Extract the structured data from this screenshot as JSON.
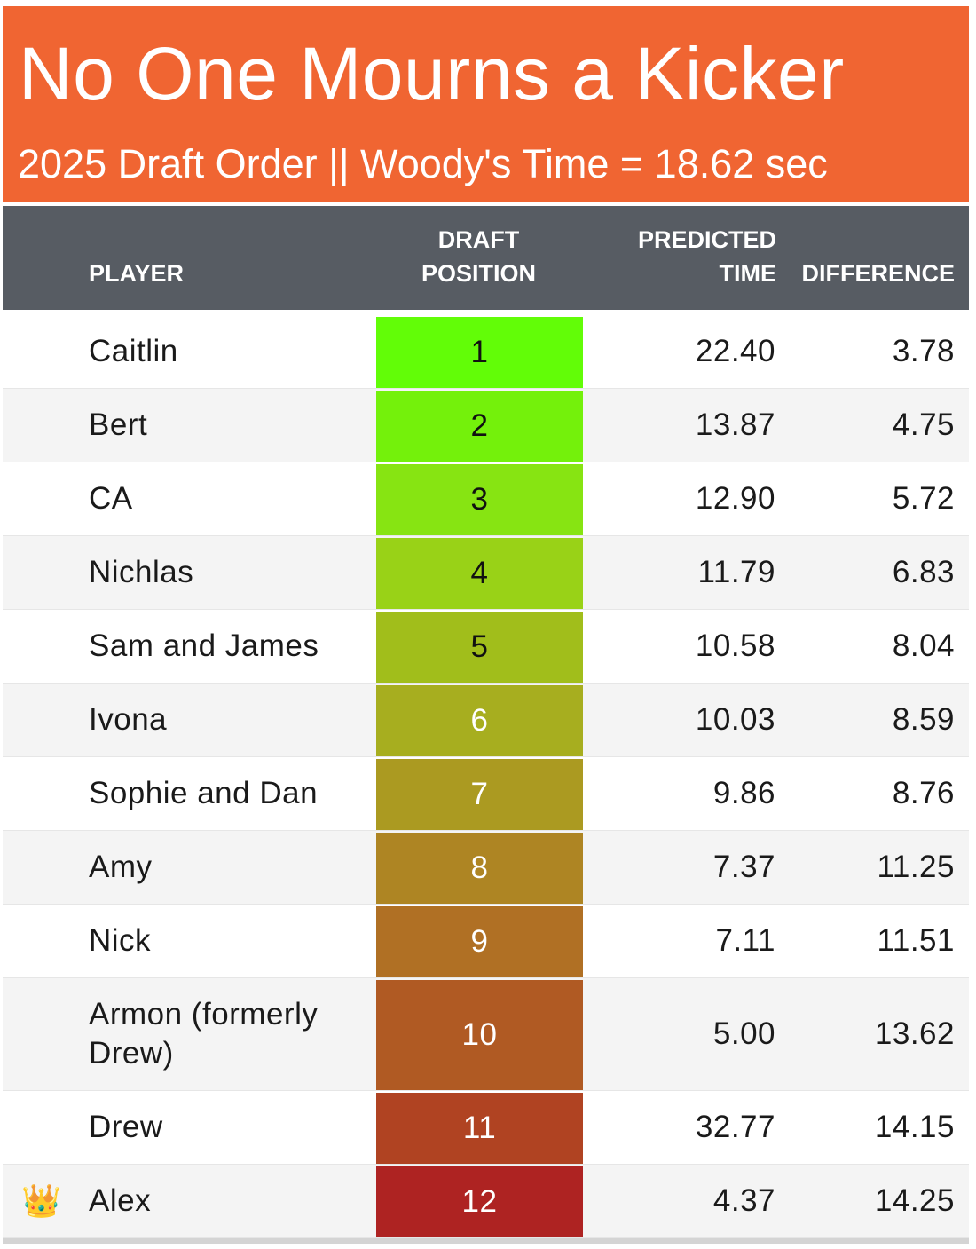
{
  "title": "No One Mourns a Kicker",
  "subtitle": "2025 Draft Order || Woody's Time = 18.62 sec",
  "colors": {
    "banner": "#f06532",
    "header": "#575c63"
  },
  "columns": {
    "player": "PLAYER",
    "draft_line1": "DRAFT",
    "draft_line2": "POSITION",
    "pred_line1": "PREDICTED",
    "pred_line2": "TIME",
    "difference": "DIFFERENCE"
  },
  "rows": [
    {
      "icon": "",
      "player": "Caitlin",
      "position": "1",
      "predicted": "22.40",
      "difference": "3.78",
      "color": "#62fd07",
      "text_color": "#111111"
    },
    {
      "icon": "",
      "player": "Bert",
      "position": "2",
      "predicted": "13.87",
      "difference": "4.75",
      "color": "#74f10b",
      "text_color": "#111111"
    },
    {
      "icon": "",
      "player": "CA",
      "position": "3",
      "predicted": "12.90",
      "difference": "5.72",
      "color": "#87e412",
      "text_color": "#111111"
    },
    {
      "icon": "",
      "player": "Nichlas",
      "position": "4",
      "predicted": "11.79",
      "difference": "6.83",
      "color": "#99d217",
      "text_color": "#111111"
    },
    {
      "icon": "",
      "player": "Sam and James",
      "position": "5",
      "predicted": "10.58",
      "difference": "8.04",
      "color": "#a1be1b",
      "text_color": "#111111"
    },
    {
      "icon": "",
      "player": "Ivona",
      "position": "6",
      "predicted": "10.03",
      "difference": "8.59",
      "color": "#a7ae1f",
      "text_color": "#ffffff"
    },
    {
      "icon": "",
      "player": "Sophie and Dan",
      "position": "7",
      "predicted": "9.86",
      "difference": "8.76",
      "color": "#ab9a21",
      "text_color": "#ffffff"
    },
    {
      "icon": "",
      "player": "Amy",
      "position": "8",
      "predicted": "7.37",
      "difference": "11.25",
      "color": "#ae8523",
      "text_color": "#ffffff"
    },
    {
      "icon": "",
      "player": "Nick",
      "position": "9",
      "predicted": "7.11",
      "difference": "11.51",
      "color": "#b07024",
      "text_color": "#ffffff"
    },
    {
      "icon": "",
      "player": "Armon (formerly Drew)",
      "position": "10",
      "predicted": "5.00",
      "difference": "13.62",
      "color": "#b05a23",
      "text_color": "#ffffff"
    },
    {
      "icon": "",
      "player": "Drew",
      "position": "11",
      "predicted": "32.77",
      "difference": "14.15",
      "color": "#b04322",
      "text_color": "#ffffff"
    },
    {
      "icon": "👑",
      "player": "Alex",
      "position": "12",
      "predicted": "4.37",
      "difference": "14.25",
      "color": "#ae2322",
      "text_color": "#ffffff"
    }
  ]
}
